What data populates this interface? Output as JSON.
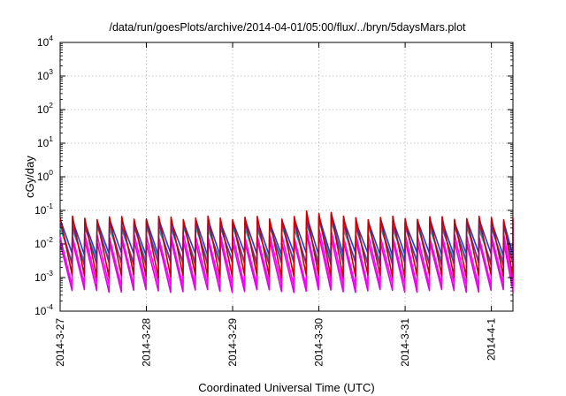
{
  "chart_data": {
    "type": "line",
    "title": "/data/run/goesPlots/archive/2014-04-01/05:00/flux/../bryn/5daysMars.plot",
    "xlabel": "Coordinated Universal Time (UTC)",
    "ylabel": "cGy/day",
    "yscale": "log",
    "ylim": [
      "1e-4",
      "1e4"
    ],
    "xlim": [
      "2014-03-27 00:00",
      "2014-04-01 06:00"
    ],
    "x_ticks": [
      "2014-3-27",
      "2014-3-28",
      "2014-3-29",
      "2014-3-30",
      "2014-3-31",
      "2014-4-1"
    ],
    "y_ticks": [
      {
        "base": "10",
        "exp": "-4"
      },
      {
        "base": "10",
        "exp": "-3"
      },
      {
        "base": "10",
        "exp": "-2"
      },
      {
        "base": "10",
        "exp": "-1"
      },
      {
        "base": "10",
        "exp": "0"
      },
      {
        "base": "10",
        "exp": "1"
      },
      {
        "base": "10",
        "exp": "2"
      },
      {
        "base": "10",
        "exp": "3"
      },
      {
        "base": "10",
        "exp": "4"
      }
    ],
    "grid": true,
    "pattern": {
      "cycles_per_day": 7,
      "note_peak_date": "2014-3-30"
    },
    "series": [
      {
        "color": "#cc0000",
        "peak": 0.06,
        "trough": 0.0011
      },
      {
        "color": "#1f3fcf",
        "peak": 0.05,
        "trough": 0.005
      },
      {
        "color": "#6a2fb0",
        "peak": 0.04,
        "trough": 0.0025
      },
      {
        "color": "#00b8b8",
        "peak": 0.03,
        "trough": 0.0032
      },
      {
        "color": "#ff00ff",
        "peak": 0.018,
        "trough": 0.0006
      },
      {
        "color": "#e000e0",
        "peak": 0.012,
        "trough": 0.0004
      }
    ]
  }
}
